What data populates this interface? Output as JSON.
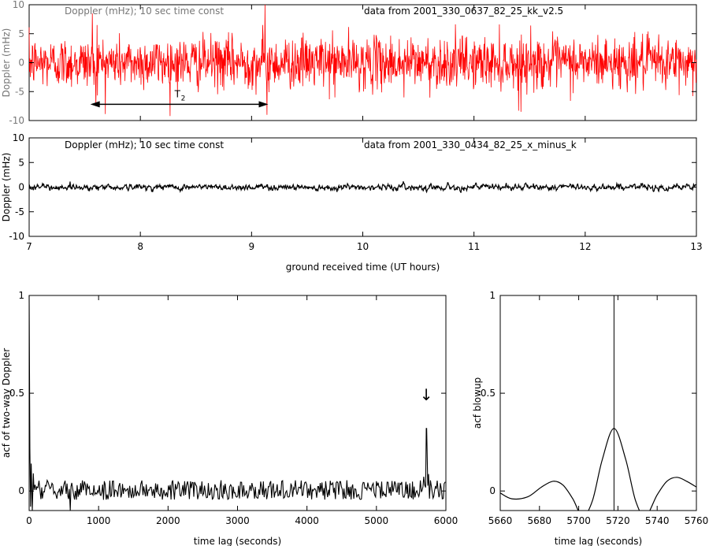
{
  "chart_data": [
    {
      "type": "line",
      "id": "top",
      "annotation_left": "Doppler (mHz); 10 sec time const",
      "annotation_right": "data from 2001_330_0637_82_25_kk_v2.5",
      "ylabel": "Doppler (mHz)",
      "xlim": [
        7,
        13
      ],
      "ylim": [
        -10,
        10
      ],
      "yticks": [
        -10,
        -5,
        0,
        5,
        10
      ],
      "xticks": [
        7,
        8,
        9,
        10,
        11,
        12,
        13
      ],
      "series": [
        {
          "color": "#ff0000",
          "noise_amplitude_mhz": 2.2,
          "spikes": [
            [
              7.57,
              8.5
            ],
            [
              7.6,
              -7.5
            ],
            [
              7.61,
              6.5
            ],
            [
              9.12,
              10
            ],
            [
              9.14,
              -9
            ],
            [
              9.1,
              6.5
            ],
            [
              11.4,
              -8.3
            ],
            [
              9.75,
              -6
            ],
            [
              10.37,
              -6
            ]
          ]
        }
      ],
      "arrow": {
        "from": 7.55,
        "to": 9.15,
        "y": -7.2,
        "label": "T",
        "label_sub": "2"
      },
      "grid": false
    },
    {
      "type": "line",
      "id": "middle",
      "annotation_left": "Doppler (mHz); 10 sec time const",
      "annotation_right": "data from 2001_330_0434_82_25_x_minus_k",
      "ylabel": "Doppler (mHz)",
      "xlabel": "ground received time (UT hours)",
      "xlim": [
        7,
        13
      ],
      "ylim": [
        -10,
        10
      ],
      "yticks": [
        -10,
        -5,
        0,
        5,
        10
      ],
      "xticks": [
        7,
        8,
        9,
        10,
        11,
        12,
        13
      ],
      "series": [
        {
          "color": "#000000",
          "noise_amplitude_mhz": 0.3
        }
      ],
      "grid": false
    },
    {
      "type": "line",
      "id": "acf",
      "ylabel": "acf of two-way Doppler",
      "xlabel": "time lag (seconds)",
      "xlim": [
        0,
        6000
      ],
      "ylim": [
        -0.1,
        1
      ],
      "yticks": [
        0,
        0.5,
        1
      ],
      "xticks": [
        0,
        1000,
        2000,
        3000,
        4000,
        5000,
        6000
      ],
      "peak": {
        "x": 5718,
        "y": 0.32
      },
      "marker": "↓",
      "grid": false
    },
    {
      "type": "line",
      "id": "blowup",
      "ylabel": "acf blowup",
      "xlabel": "time lag (seconds)",
      "xlim": [
        5660,
        5760
      ],
      "ylim": [
        -0.1,
        1
      ],
      "yticks": [
        0,
        0.5,
        1
      ],
      "xticks": [
        5660,
        5680,
        5700,
        5720,
        5740,
        5760
      ],
      "vline_x": 5718,
      "points": [
        [
          5660,
          -0.01
        ],
        [
          5666,
          -0.04
        ],
        [
          5674,
          -0.03
        ],
        [
          5681,
          0.02
        ],
        [
          5687,
          0.05
        ],
        [
          5692,
          0.03
        ],
        [
          5697,
          -0.04
        ],
        [
          5702,
          -0.13
        ],
        [
          5707,
          -0.05
        ],
        [
          5712,
          0.16
        ],
        [
          5718,
          0.32
        ],
        [
          5724,
          0.16
        ],
        [
          5729,
          -0.05
        ],
        [
          5734,
          -0.13
        ],
        [
          5740,
          -0.02
        ],
        [
          5745,
          0.05
        ],
        [
          5750,
          0.07
        ],
        [
          5755,
          0.05
        ],
        [
          5760,
          0.02
        ]
      ],
      "grid": false
    }
  ]
}
